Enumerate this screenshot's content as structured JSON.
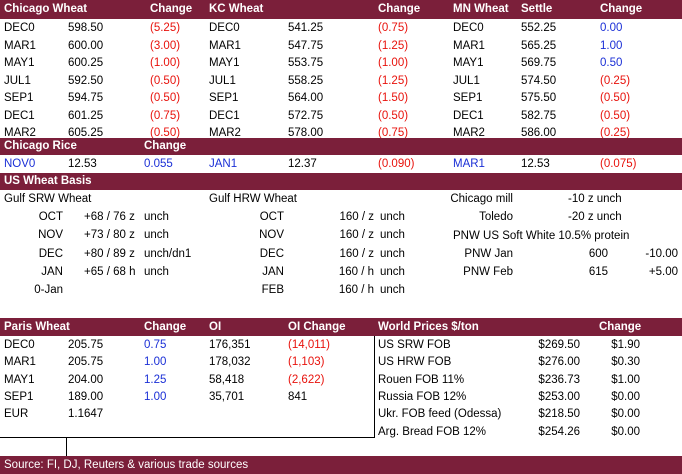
{
  "colors": {
    "header": "#7b1f3a",
    "negative": "#e8120c",
    "positive": "#1a2fd6"
  },
  "futures": {
    "headers": {
      "chi": "Chicago Wheat",
      "chi_chg": "Change",
      "kc": "KC Wheat",
      "kc_chg": "Change",
      "mn": "MN Wheat",
      "mn_settle": "Settle",
      "mn_chg": "Change"
    },
    "rows": [
      {
        "c1": "DEC0",
        "p1": "598.50",
        "ch1": "(5.25)",
        "c2": "DEC0",
        "p2": "541.25",
        "ch2": "(0.75)",
        "c3": "DEC0",
        "p3": "552.25",
        "ch3": "0.00"
      },
      {
        "c1": "MAR1",
        "p1": "600.00",
        "ch1": "(3.00)",
        "c2": "MAR1",
        "p2": "547.75",
        "ch2": "(1.25)",
        "c3": "MAR1",
        "p3": "565.25",
        "ch3": "1.00"
      },
      {
        "c1": "MAY1",
        "p1": "600.25",
        "ch1": "(1.00)",
        "c2": "MAY1",
        "p2": "553.75",
        "ch2": "(1.00)",
        "c3": "MAY1",
        "p3": "569.75",
        "ch3": "0.50"
      },
      {
        "c1": "JUL1",
        "p1": "592.50",
        "ch1": "(0.50)",
        "c2": "JUL1",
        "p2": "558.25",
        "ch2": "(1.25)",
        "c3": "JUL1",
        "p3": "574.50",
        "ch3": "(0.25)"
      },
      {
        "c1": "SEP1",
        "p1": "594.75",
        "ch1": "(0.50)",
        "c2": "SEP1",
        "p2": "564.00",
        "ch2": "(1.50)",
        "c3": "SEP1",
        "p3": "575.50",
        "ch3": "(0.50)"
      },
      {
        "c1": "DEC1",
        "p1": "601.25",
        "ch1": "(0.75)",
        "c2": "DEC1",
        "p2": "572.75",
        "ch2": "(0.50)",
        "c3": "DEC1",
        "p3": "582.75",
        "ch3": "(0.50)"
      },
      {
        "c1": "MAR2",
        "p1": "605.25",
        "ch1": "(0.50)",
        "c2": "MAR2",
        "p2": "578.00",
        "ch2": "(0.75)",
        "c3": "MAR2",
        "p3": "586.00",
        "ch3": "(0.25)"
      }
    ]
  },
  "rice": {
    "title": "Chicago Rice",
    "change_label": "Change",
    "items": [
      {
        "c": "NOV0",
        "p": "12.53",
        "ch": "0.055"
      },
      {
        "c": "JAN1",
        "p": "12.37",
        "ch": "(0.090)"
      },
      {
        "c": "MAR1",
        "p": "12.53",
        "ch": "(0.075)"
      }
    ]
  },
  "basis": {
    "title": "US Wheat Basis",
    "gulf_srw": {
      "title": "Gulf SRW Wheat",
      "rows": [
        {
          "m": "OCT",
          "v": "+68 / 76 z",
          "u": "unch"
        },
        {
          "m": "NOV",
          "v": "+73 / 80 z",
          "u": "unch"
        },
        {
          "m": "DEC",
          "v": "+80 / 89 z",
          "u": "unch/dn1"
        },
        {
          "m": "JAN",
          "v": "+65 / 68 h",
          "u": "unch"
        },
        {
          "m": "0-Jan",
          "v": "",
          "u": ""
        }
      ]
    },
    "gulf_hrw": {
      "title": "Gulf HRW Wheat",
      "rows": [
        {
          "m": "OCT",
          "v": "160 / z",
          "u": "unch"
        },
        {
          "m": "NOV",
          "v": "160 / z",
          "u": "unch"
        },
        {
          "m": "DEC",
          "v": "160 / z",
          "u": "unch"
        },
        {
          "m": "JAN",
          "v": "160 / h",
          "u": "unch"
        },
        {
          "m": "FEB",
          "v": "160 / h",
          "u": "unch"
        }
      ]
    },
    "mill": [
      {
        "n": "Chicago mill",
        "v": "-10 z unch"
      },
      {
        "n": "Toledo",
        "v": "-20 z unch"
      }
    ],
    "pnw_title": "PNW US Soft White 10.5% protein",
    "pnw": [
      {
        "n": "PNW Jan",
        "v": "600",
        "ch": "-10.00"
      },
      {
        "n": "PNW Feb",
        "v": "615",
        "ch": "+5.00"
      }
    ]
  },
  "paris": {
    "headers": {
      "name": "Paris Wheat",
      "chg": "Change",
      "oi": "OI",
      "oichg": "OI Change"
    },
    "rows": [
      {
        "c": "DEC0",
        "p": "205.75",
        "ch": "0.75",
        "oi": "176,351",
        "oich": "(14,011)"
      },
      {
        "c": "MAR1",
        "p": "205.75",
        "ch": "1.00",
        "oi": "178,032",
        "oich": "(1,103)"
      },
      {
        "c": "MAY1",
        "p": "204.00",
        "ch": "1.25",
        "oi": "58,418",
        "oich": "(2,622)"
      },
      {
        "c": "SEP1",
        "p": "189.00",
        "ch": "1.00",
        "oi": "35,701",
        "oich": "841"
      }
    ],
    "eur": {
      "label": "EUR",
      "value": "1.1647"
    }
  },
  "world": {
    "headers": {
      "name": "World Prices $/ton",
      "chg": "Change"
    },
    "rows": [
      {
        "n": "US SRW FOB",
        "p": "$269.50",
        "ch": "$1.90"
      },
      {
        "n": "US HRW FOB",
        "p": "$276.00",
        "ch": "$0.30"
      },
      {
        "n": "Rouen FOB 11%",
        "p": "$236.73",
        "ch": "$1.00"
      },
      {
        "n": "Russia FOB 12%",
        "p": "$253.00",
        "ch": "$0.00"
      },
      {
        "n": "Ukr. FOB feed (Odessa)",
        "p": "$218.50",
        "ch": "$0.00"
      },
      {
        "n": "Arg. Bread FOB 12%",
        "p": "$254.26",
        "ch": "$0.00"
      }
    ]
  },
  "footer": {
    "source": "Source: FI, DJ, Reuters & various trade sources"
  }
}
